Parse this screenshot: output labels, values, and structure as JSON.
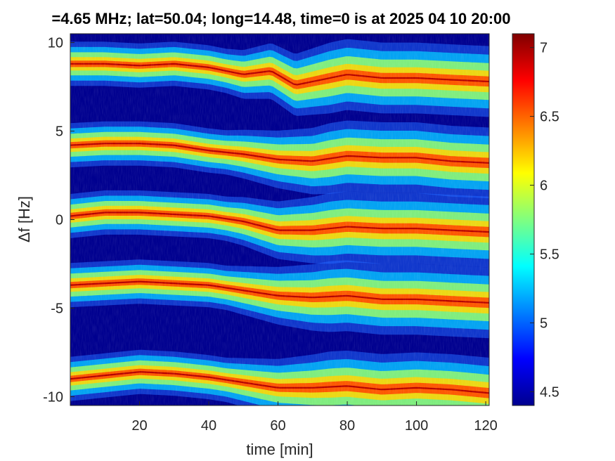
{
  "chart_data": {
    "type": "heatmap",
    "title": "=4.65 MHz;  lat=50.04; long=14.48, time=0 is at 2025 04 10 20:00",
    "xlabel": "time [min]",
    "ylabel": "Δf [Hz]",
    "xlim": [
      0,
      121
    ],
    "ylim": [
      -10.5,
      10.5
    ],
    "xticks": [
      20,
      40,
      60,
      80,
      100,
      120
    ],
    "yticks": [
      10,
      5,
      0,
      -5,
      -10
    ],
    "colorbar": {
      "colormap": "jet",
      "range": [
        4.4,
        7.1
      ],
      "ticks": [
        7,
        6.5,
        6,
        5.5,
        5,
        4.5
      ]
    },
    "background_level": 4.4,
    "bands": [
      {
        "name": "",
        "x": [
          0,
          10,
          20,
          30,
          40,
          50,
          58,
          65,
          70,
          80,
          90,
          100,
          110,
          121
        ],
        "y": [
          8.8,
          8.8,
          8.7,
          8.8,
          8.6,
          8.2,
          8.4,
          7.6,
          7.8,
          8.2,
          8.0,
          8.0,
          7.9,
          7.8
        ]
      },
      {
        "name": "",
        "x": [
          0,
          10,
          20,
          30,
          40,
          50,
          60,
          70,
          80,
          90,
          100,
          110,
          121
        ],
        "y": [
          4.2,
          4.3,
          4.3,
          4.2,
          3.9,
          3.7,
          3.4,
          3.3,
          3.6,
          3.5,
          3.5,
          3.3,
          3.2
        ]
      },
      {
        "name": "",
        "x": [
          0,
          10,
          20,
          30,
          40,
          50,
          60,
          70,
          80,
          90,
          100,
          110,
          121
        ],
        "y": [
          0.2,
          0.4,
          0.4,
          0.3,
          0.2,
          -0.1,
          -0.6,
          -0.6,
          -0.4,
          -0.5,
          -0.5,
          -0.6,
          -0.7
        ]
      },
      {
        "name": "",
        "x": [
          0,
          10,
          20,
          30,
          40,
          50,
          60,
          70,
          80,
          90,
          100,
          110,
          121
        ],
        "y": [
          -3.7,
          -3.6,
          -3.5,
          -3.6,
          -3.7,
          -4.0,
          -4.3,
          -4.4,
          -4.3,
          -4.5,
          -4.5,
          -4.6,
          -4.7
        ]
      },
      {
        "name": "",
        "x": [
          0,
          10,
          20,
          30,
          40,
          50,
          60,
          70,
          80,
          90,
          100,
          110,
          121
        ],
        "y": [
          -9.0,
          -8.8,
          -8.6,
          -8.7,
          -8.9,
          -9.2,
          -9.5,
          -9.5,
          -9.4,
          -9.6,
          -9.5,
          -9.6,
          -9.8
        ]
      }
    ]
  }
}
